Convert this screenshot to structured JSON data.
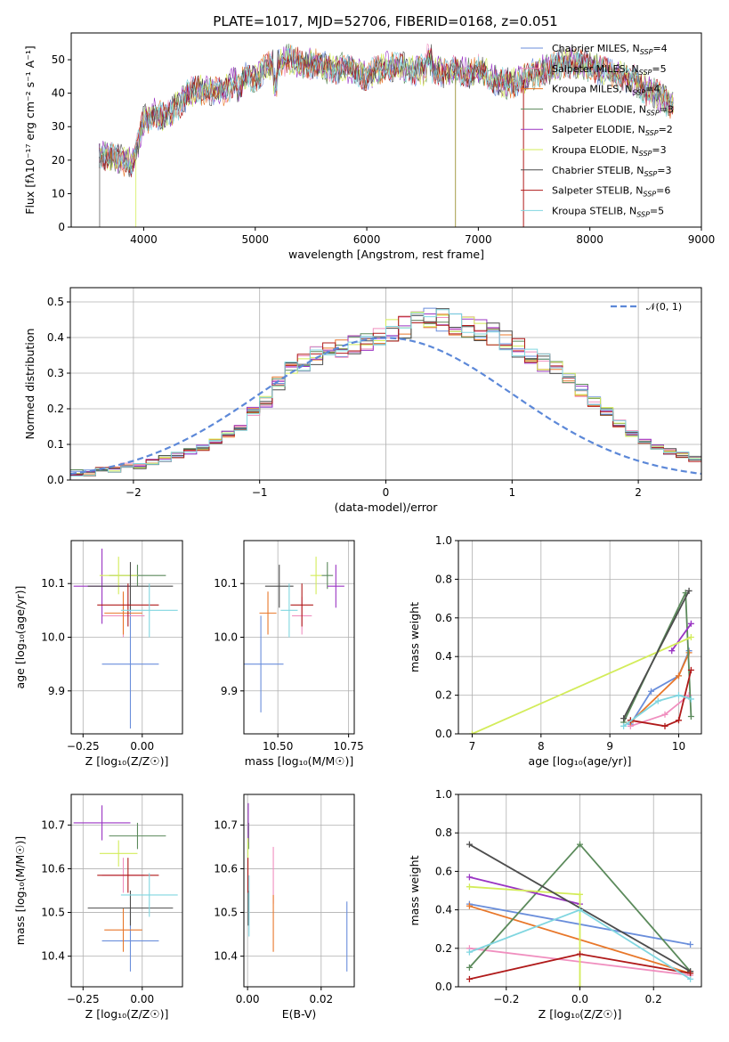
{
  "title": "PLATE=1017, MJD=52706, FIBERID=0168, z=0.051",
  "colors": {
    "chabrier_miles": "#6a8edb",
    "salpeter_miles": "#f08fbf",
    "kroupa_miles": "#e8772a",
    "chabrier_elodie": "#5b8a5b",
    "salpeter_elodie": "#9a34c3",
    "kroupa_elodie": "#d3ec5a",
    "chabrier_stelib": "#4d4d4d",
    "salpeter_stelib": "#b01a1a",
    "kroupa_stelib": "#80d6e0",
    "normal_curve": "#5c88d8",
    "grid": "#b0b0b0"
  },
  "chart_data": [
    {
      "id": "spectrum",
      "type": "line",
      "xlabel": "wavelength [Angstrom, rest frame]",
      "ylabel": "Flux [fλ10⁻¹⁷ erg cm⁻² s⁻¹ A⁻¹]",
      "xlim": [
        3350,
        9000
      ],
      "ylim": [
        0,
        58
      ],
      "xticks": [
        4000,
        5000,
        6000,
        7000,
        8000,
        9000
      ],
      "yticks": [
        0,
        10,
        20,
        30,
        40,
        50
      ],
      "grid": false,
      "legend_position": "top-right",
      "legend": [
        {
          "key": "chabrier_miles",
          "label": "Chabrier MILES, N",
          "sub": "SSP",
          "eq": "=4"
        },
        {
          "key": "salpeter_miles",
          "label": "Salpeter MILES, N",
          "sub": "SSP",
          "eq": "=5"
        },
        {
          "key": "kroupa_miles",
          "label": "Kroupa MILES, N",
          "sub": "SSP",
          "eq": "=4"
        },
        {
          "key": "chabrier_elodie",
          "label": "Chabrier ELODIE, N",
          "sub": "SSP",
          "eq": "=3"
        },
        {
          "key": "salpeter_elodie",
          "label": "Salpeter ELODIE, N",
          "sub": "SSP",
          "eq": "=2"
        },
        {
          "key": "kroupa_elodie",
          "label": "Kroupa ELODIE, N",
          "sub": "SSP",
          "eq": "=3"
        },
        {
          "key": "chabrier_stelib",
          "label": "Chabrier STELIB, N",
          "sub": "SSP",
          "eq": "=3"
        },
        {
          "key": "salpeter_stelib",
          "label": "Salpeter STELIB, N",
          "sub": "SSP",
          "eq": "=6"
        },
        {
          "key": "kroupa_stelib",
          "label": "Kroupa STELIB, N",
          "sub": "SSP",
          "eq": "=5"
        }
      ],
      "envelope": [
        [
          3600,
          22
        ],
        [
          3700,
          21
        ],
        [
          3800,
          20
        ],
        [
          3900,
          19
        ],
        [
          3950,
          25
        ],
        [
          4000,
          32
        ],
        [
          4100,
          34
        ],
        [
          4200,
          33
        ],
        [
          4300,
          36
        ],
        [
          4400,
          40
        ],
        [
          4500,
          41
        ],
        [
          4600,
          41
        ],
        [
          4700,
          40
        ],
        [
          4800,
          43
        ],
        [
          4900,
          45
        ],
        [
          5000,
          44
        ],
        [
          5100,
          48
        ],
        [
          5200,
          49
        ],
        [
          5300,
          50
        ],
        [
          5400,
          49
        ],
        [
          5500,
          49
        ],
        [
          5600,
          48
        ],
        [
          5700,
          47
        ],
        [
          5800,
          48
        ],
        [
          5900,
          46
        ],
        [
          6000,
          45
        ],
        [
          6100,
          47
        ],
        [
          6200,
          48
        ],
        [
          6300,
          48
        ],
        [
          6400,
          47
        ],
        [
          6500,
          47
        ],
        [
          6600,
          47
        ],
        [
          6700,
          46
        ],
        [
          6800,
          47
        ],
        [
          6900,
          46
        ],
        [
          7000,
          47
        ],
        [
          7100,
          45
        ],
        [
          7200,
          43
        ],
        [
          7300,
          43
        ],
        [
          7400,
          44
        ],
        [
          7500,
          46
        ],
        [
          7600,
          47
        ],
        [
          7700,
          48
        ],
        [
          7800,
          49
        ],
        [
          7900,
          49
        ],
        [
          8000,
          48
        ],
        [
          8100,
          47
        ],
        [
          8200,
          46
        ],
        [
          8300,
          45
        ],
        [
          8400,
          44
        ],
        [
          8500,
          41
        ],
        [
          8600,
          40
        ],
        [
          8700,
          37
        ]
      ]
    },
    {
      "id": "residuals",
      "type": "histogram",
      "xlabel": "(data-model)/error",
      "ylabel": "Normed distribution",
      "xlim": [
        -2.5,
        2.5
      ],
      "ylim": [
        0,
        0.54
      ],
      "xticks": [
        -2,
        -1,
        0,
        1,
        2
      ],
      "yticks": [
        0.0,
        0.1,
        0.2,
        0.3,
        0.4,
        0.5
      ],
      "grid": true,
      "legend_position": "top-right",
      "legend_label": "𝒩(0, 1)",
      "bin_edges_start": -2.5,
      "bin_width": 0.1,
      "base_values": [
        0.02,
        0.02,
        0.03,
        0.03,
        0.04,
        0.04,
        0.05,
        0.06,
        0.07,
        0.08,
        0.09,
        0.11,
        0.13,
        0.15,
        0.19,
        0.22,
        0.27,
        0.31,
        0.33,
        0.35,
        0.36,
        0.37,
        0.38,
        0.39,
        0.4,
        0.42,
        0.43,
        0.44,
        0.46,
        0.45,
        0.44,
        0.43,
        0.42,
        0.41,
        0.39,
        0.37,
        0.35,
        0.33,
        0.31,
        0.28,
        0.25,
        0.22,
        0.19,
        0.16,
        0.13,
        0.11,
        0.09,
        0.08,
        0.07,
        0.06,
        0.05
      ]
    },
    {
      "id": "age_vs_Z",
      "type": "errorbar",
      "xlabel": "Z [log₁₀(Z/Z☉)]",
      "ylabel": "age  [log₁₀(age/yr)]",
      "xlim": [
        -0.3,
        0.17
      ],
      "ylim": [
        9.82,
        10.18
      ],
      "xticks": [
        -0.25,
        0.0
      ],
      "xticklabels": [
        "−0.25",
        "0.00"
      ],
      "yticks": [
        9.9,
        10.0,
        10.1
      ],
      "grid": true,
      "points": [
        {
          "key": "chabrier_miles",
          "x": -0.05,
          "xerr": 0.12,
          "y": 9.95,
          "yerr": 0.12
        },
        {
          "key": "salpeter_miles",
          "x": -0.08,
          "xerr": 0.09,
          "y": 10.04,
          "yerr": 0.04
        },
        {
          "key": "kroupa_miles",
          "x": -0.08,
          "xerr": 0.08,
          "y": 10.045,
          "yerr": 0.04
        },
        {
          "key": "chabrier_elodie",
          "x": -0.02,
          "xerr": 0.12,
          "y": 10.115,
          "yerr": 0.02
        },
        {
          "key": "salpeter_elodie",
          "x": -0.17,
          "xerr": 0.12,
          "y": 10.095,
          "yerr": 0.07
        },
        {
          "key": "kroupa_elodie",
          "x": -0.1,
          "xerr": 0.08,
          "y": 10.115,
          "yerr": 0.035
        },
        {
          "key": "chabrier_stelib",
          "x": -0.05,
          "xerr": 0.18,
          "y": 10.095,
          "yerr": 0.045
        },
        {
          "key": "salpeter_stelib",
          "x": -0.06,
          "xerr": 0.13,
          "y": 10.06,
          "yerr": 0.04
        },
        {
          "key": "kroupa_stelib",
          "x": 0.03,
          "xerr": 0.12,
          "y": 10.05,
          "yerr": 0.05
        }
      ]
    },
    {
      "id": "age_vs_mass",
      "type": "errorbar",
      "xlabel": "mass [log₁₀(M/M☉)]",
      "ylabel": "",
      "xlim": [
        10.38,
        10.77
      ],
      "ylim": [
        9.82,
        10.18
      ],
      "xticks": [
        10.5,
        10.75
      ],
      "xticklabels": [
        "10.50",
        "10.75"
      ],
      "yticks": [
        9.9,
        10.0,
        10.1
      ],
      "grid": true,
      "points": [
        {
          "key": "chabrier_miles",
          "x": 10.44,
          "xerr": 0.08,
          "y": 9.95,
          "yerr": 0.09
        },
        {
          "key": "salpeter_miles",
          "x": 10.585,
          "xerr": 0.035,
          "y": 10.04,
          "yerr": 0.035
        },
        {
          "key": "kroupa_miles",
          "x": 10.465,
          "xerr": 0.03,
          "y": 10.045,
          "yerr": 0.04
        },
        {
          "key": "chabrier_elodie",
          "x": 10.675,
          "xerr": 0.02,
          "y": 10.115,
          "yerr": 0.025
        },
        {
          "key": "salpeter_elodie",
          "x": 10.705,
          "xerr": 0.03,
          "y": 10.095,
          "yerr": 0.04
        },
        {
          "key": "kroupa_elodie",
          "x": 10.635,
          "xerr": 0.02,
          "y": 10.115,
          "yerr": 0.035
        },
        {
          "key": "chabrier_stelib",
          "x": 10.505,
          "xerr": 0.05,
          "y": 10.095,
          "yerr": 0.04
        },
        {
          "key": "salpeter_stelib",
          "x": 10.585,
          "xerr": 0.04,
          "y": 10.06,
          "yerr": 0.04
        },
        {
          "key": "kroupa_stelib",
          "x": 10.54,
          "xerr": 0.03,
          "y": 10.05,
          "yerr": 0.05
        }
      ]
    },
    {
      "id": "weight_vs_age",
      "type": "line",
      "xlabel": "age  [log₁₀(age/yr)]",
      "ylabel": "mass weight",
      "xlim": [
        6.8,
        10.33
      ],
      "ylim": [
        0,
        1.0
      ],
      "xticks": [
        7,
        8,
        9,
        10
      ],
      "yticks": [
        0.0,
        0.2,
        0.4,
        0.6,
        0.8,
        1.0
      ],
      "grid": true,
      "series": [
        {
          "key": "chabrier_miles",
          "points": [
            [
              9.3,
              0.05
            ],
            [
              9.6,
              0.22
            ],
            [
              10.0,
              0.3
            ],
            [
              10.15,
              0.43
            ]
          ]
        },
        {
          "key": "salpeter_miles",
          "points": [
            [
              9.3,
              0.04
            ],
            [
              9.8,
              0.1
            ],
            [
              10.15,
              0.2
            ]
          ]
        },
        {
          "key": "kroupa_miles",
          "points": [
            [
              9.3,
              0.06
            ],
            [
              10.0,
              0.3
            ],
            [
              10.15,
              0.42
            ]
          ]
        },
        {
          "key": "chabrier_elodie",
          "points": [
            [
              9.2,
              0.06
            ],
            [
              10.1,
              0.73
            ],
            [
              10.18,
              0.09
            ]
          ]
        },
        {
          "key": "salpeter_elodie",
          "points": [
            [
              9.9,
              0.43
            ],
            [
              10.18,
              0.57
            ]
          ]
        },
        {
          "key": "kroupa_elodie",
          "points": [
            [
              7.0,
              0.0
            ],
            [
              10.18,
              0.5
            ]
          ]
        },
        {
          "key": "chabrier_stelib",
          "points": [
            [
              9.2,
              0.08
            ],
            [
              10.15,
              0.74
            ]
          ]
        },
        {
          "key": "salpeter_stelib",
          "points": [
            [
              9.3,
              0.07
            ],
            [
              9.8,
              0.04
            ],
            [
              10.0,
              0.07
            ],
            [
              10.18,
              0.33
            ]
          ]
        },
        {
          "key": "kroupa_stelib",
          "points": [
            [
              9.2,
              0.04
            ],
            [
              9.7,
              0.17
            ],
            [
              10.0,
              0.2
            ],
            [
              10.18,
              0.18
            ]
          ]
        }
      ]
    },
    {
      "id": "mass_vs_Z",
      "type": "errorbar",
      "xlabel": "Z [log₁₀(Z/Z☉)]",
      "ylabel": "mass [log₁₀(M/M☉)]",
      "xlim": [
        -0.3,
        0.17
      ],
      "ylim": [
        10.33,
        10.77
      ],
      "xticks": [
        -0.25,
        0.0
      ],
      "xticklabels": [
        "−0.25",
        "0.00"
      ],
      "yticks": [
        10.4,
        10.5,
        10.6,
        10.7
      ],
      "grid": true,
      "points": [
        {
          "key": "chabrier_miles",
          "x": -0.05,
          "xerr": 0.12,
          "y": 10.435,
          "yerr": 0.07
        },
        {
          "key": "salpeter_miles",
          "x": -0.08,
          "xerr": 0.09,
          "y": 10.585,
          "yerr": 0.04
        },
        {
          "key": "kroupa_miles",
          "x": -0.08,
          "xerr": 0.08,
          "y": 10.46,
          "yerr": 0.05
        },
        {
          "key": "chabrier_elodie",
          "x": -0.02,
          "xerr": 0.12,
          "y": 10.675,
          "yerr": 0.03
        },
        {
          "key": "salpeter_elodie",
          "x": -0.17,
          "xerr": 0.12,
          "y": 10.705,
          "yerr": 0.04
        },
        {
          "key": "kroupa_elodie",
          "x": -0.1,
          "xerr": 0.08,
          "y": 10.635,
          "yerr": 0.03
        },
        {
          "key": "chabrier_stelib",
          "x": -0.05,
          "xerr": 0.18,
          "y": 10.51,
          "yerr": 0.04
        },
        {
          "key": "salpeter_stelib",
          "x": -0.06,
          "xerr": 0.13,
          "y": 10.585,
          "yerr": 0.04
        },
        {
          "key": "kroupa_stelib",
          "x": 0.03,
          "xerr": 0.12,
          "y": 10.54,
          "yerr": 0.05
        }
      ]
    },
    {
      "id": "mass_vs_ebv",
      "type": "errorbar",
      "xlabel": "E(B-V)",
      "ylabel": "",
      "xlim": [
        -0.001,
        0.029
      ],
      "ylim": [
        10.33,
        10.77
      ],
      "xticks": [
        0.0,
        0.02
      ],
      "xticklabels": [
        "0.00",
        "0.02"
      ],
      "yticks": [
        10.4,
        10.5,
        10.6,
        10.7
      ],
      "grid": true,
      "points": [
        {
          "key": "chabrier_miles",
          "x": 0.027,
          "xerr": 0,
          "y": 10.445,
          "yerr": 0.08
        },
        {
          "key": "salpeter_miles",
          "x": 0.007,
          "xerr": 0,
          "y": 10.585,
          "yerr": 0.065
        },
        {
          "key": "kroupa_miles",
          "x": 0.007,
          "xerr": 0,
          "y": 10.475,
          "yerr": 0.065
        },
        {
          "key": "chabrier_elodie",
          "x": 0.0003,
          "xerr": 0,
          "y": 10.675,
          "yerr": 0.03
        },
        {
          "key": "salpeter_elodie",
          "x": 0.0002,
          "xerr": 0,
          "y": 10.705,
          "yerr": 0.045
        },
        {
          "key": "kroupa_elodie",
          "x": 0.0001,
          "xerr": 0,
          "y": 10.635,
          "yerr": 0.035
        },
        {
          "key": "chabrier_stelib",
          "x": 0.0002,
          "xerr": 0,
          "y": 10.51,
          "yerr": 0.04
        },
        {
          "key": "salpeter_stelib",
          "x": 0.0001,
          "xerr": 0,
          "y": 10.585,
          "yerr": 0.04
        },
        {
          "key": "kroupa_stelib",
          "x": 0.0004,
          "xerr": 0,
          "y": 10.515,
          "yerr": 0.07
        }
      ]
    },
    {
      "id": "weight_vs_Z",
      "type": "line",
      "xlabel": "Z [log₁₀(Z/Z☉)]",
      "ylabel": "mass weight",
      "xlim": [
        -0.33,
        0.33
      ],
      "ylim": [
        0,
        1.0
      ],
      "xticks": [
        -0.2,
        0.0,
        0.2
      ],
      "xticklabels": [
        "−0.2",
        "0.0",
        "0.2"
      ],
      "yticks": [
        0.0,
        0.2,
        0.4,
        0.6,
        0.8,
        1.0
      ],
      "grid": true,
      "series": [
        {
          "key": "chabrier_miles",
          "points": [
            [
              -0.3,
              0.43
            ],
            [
              0.3,
              0.22
            ]
          ]
        },
        {
          "key": "salpeter_miles",
          "points": [
            [
              -0.3,
              0.2
            ],
            [
              0.3,
              0.06
            ]
          ]
        },
        {
          "key": "kroupa_miles",
          "points": [
            [
              -0.3,
              0.42
            ],
            [
              0.3,
              0.07
            ]
          ]
        },
        {
          "key": "chabrier_elodie",
          "points": [
            [
              -0.3,
              0.1
            ],
            [
              0.0,
              0.74
            ],
            [
              0.3,
              0.08
            ]
          ]
        },
        {
          "key": "salpeter_elodie",
          "points": [
            [
              -0.3,
              0.57
            ],
            [
              0.0,
              0.43
            ]
          ]
        },
        {
          "key": "kroupa_elodie",
          "points": [
            [
              -0.3,
              0.52
            ],
            [
              0.0,
              0.48
            ],
            [
              0.0,
              0.0
            ]
          ]
        },
        {
          "key": "chabrier_stelib",
          "points": [
            [
              -0.3,
              0.74
            ],
            [
              0.3,
              0.08
            ]
          ]
        },
        {
          "key": "salpeter_stelib",
          "points": [
            [
              -0.3,
              0.04
            ],
            [
              0.0,
              0.17
            ],
            [
              0.3,
              0.07
            ]
          ]
        },
        {
          "key": "kroupa_stelib",
          "points": [
            [
              -0.3,
              0.18
            ],
            [
              0.0,
              0.4
            ],
            [
              0.3,
              0.04
            ]
          ]
        }
      ]
    }
  ]
}
